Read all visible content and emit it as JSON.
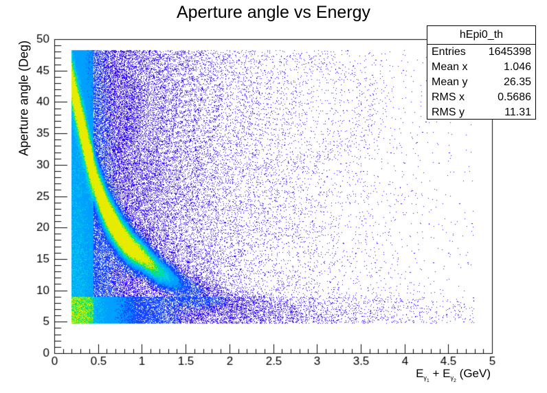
{
  "chart_data": {
    "type": "heatmap",
    "title": "Aperture angle vs Energy",
    "xlabel": "E_{γ1} + E_{γ2} (GeV)",
    "ylabel": "Aperture angle (Deg)",
    "xlim": [
      0,
      5
    ],
    "ylim": [
      0,
      50
    ],
    "x_ticks": [
      "0",
      "0.5",
      "1",
      "1.5",
      "2",
      "2.5",
      "3",
      "3.5",
      "4",
      "4.5",
      "5"
    ],
    "y_ticks": [
      "0",
      "5",
      "10",
      "15",
      "20",
      "25",
      "30",
      "35",
      "40",
      "45",
      "50"
    ],
    "data_extent": {
      "x": [
        0.2,
        4.8
      ],
      "y": [
        4.7,
        48.3
      ]
    },
    "peak_band": [
      {
        "E": 0.4,
        "angle": 31
      },
      {
        "E": 0.5,
        "angle": 26
      },
      {
        "E": 0.6,
        "angle": 22.5
      },
      {
        "E": 0.7,
        "angle": 20
      },
      {
        "E": 0.8,
        "angle": 18
      },
      {
        "E": 0.9,
        "angle": 16.5
      },
      {
        "E": 1.0,
        "angle": 15.5
      },
      {
        "E": 1.2,
        "angle": 13
      },
      {
        "E": 1.5,
        "angle": 10.5
      },
      {
        "E": 2.0,
        "angle": 8
      }
    ],
    "colors": {
      "low": "#2b00ff",
      "mid": "#00c8ff",
      "high": "#00e070",
      "peak": "#f0f000"
    },
    "grid": false,
    "legend_position": "top-right"
  },
  "statbox": {
    "name": "hEpi0_th",
    "rows": [
      {
        "label": "Entries",
        "value": "1645398"
      },
      {
        "label": "Mean x",
        "value": "1.046"
      },
      {
        "label": "Mean y",
        "value": "26.35"
      },
      {
        "label": "RMS x",
        "value": "0.5686"
      },
      {
        "label": "RMS y",
        "value": "11.31"
      }
    ]
  }
}
